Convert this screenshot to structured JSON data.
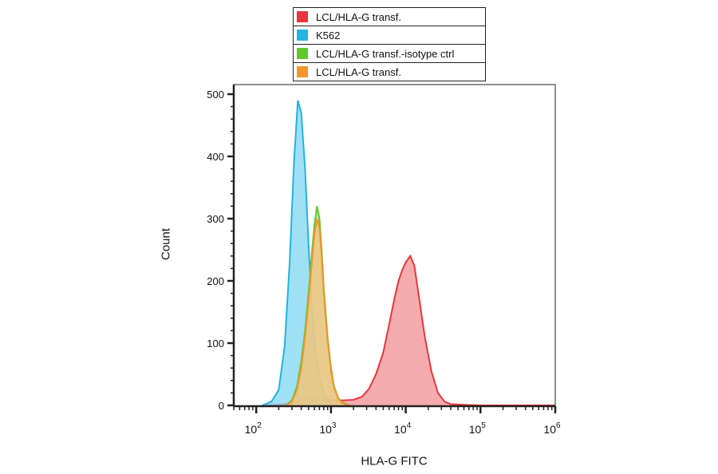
{
  "chart_data": {
    "type": "area",
    "xlabel": "HLA-G FITC",
    "ylabel": "Count",
    "x_scale": "log",
    "xlim": [
      50,
      1000000
    ],
    "ylim": [
      0,
      500
    ],
    "x_ticks": [
      {
        "base": "10",
        "exp": "2",
        "value": 100
      },
      {
        "base": "10",
        "exp": "3",
        "value": 1000
      },
      {
        "base": "10",
        "exp": "4",
        "value": 10000
      },
      {
        "base": "10",
        "exp": "5",
        "value": 100000
      },
      {
        "base": "10",
        "exp": "6",
        "value": 1000000
      }
    ],
    "y_ticks": [
      {
        "label": "0",
        "value": 0
      },
      {
        "label": "100",
        "value": 100
      },
      {
        "label": "200",
        "value": 200
      },
      {
        "label": "300",
        "value": 300
      },
      {
        "label": "400",
        "value": 400
      },
      {
        "label": "500",
        "value": 500
      }
    ],
    "legend_position": "top-center",
    "series": [
      {
        "name": "LCL/HLA-G transf.",
        "color": "#e8383d",
        "fill": "#f08f92",
        "x": [
          120,
          200,
          300,
          380,
          500,
          700,
          1000,
          1400,
          2000,
          2600,
          3200,
          4000,
          5000,
          6000,
          7000,
          8000,
          9000,
          10000,
          11500,
          13000,
          15000,
          18000,
          22000,
          27000,
          33000,
          40000,
          60000,
          100000,
          1000000
        ],
        "y": [
          0,
          1,
          3,
          8,
          11,
          10,
          9,
          8,
          9,
          14,
          26,
          50,
          85,
          130,
          170,
          200,
          218,
          230,
          240,
          225,
          175,
          110,
          55,
          20,
          6,
          2,
          1,
          0,
          0
        ]
      },
      {
        "name": "K562",
        "color": "#22b4e2",
        "fill": "#7fd6f2",
        "x": [
          120,
          160,
          200,
          240,
          280,
          320,
          360,
          400,
          450,
          500,
          560,
          620,
          700,
          800,
          900,
          1000,
          1100
        ],
        "y": [
          0,
          6,
          25,
          95,
          230,
          390,
          490,
          470,
          380,
          260,
          150,
          85,
          45,
          20,
          8,
          3,
          0
        ]
      },
      {
        "name": "LCL/HLA-G transf.-isotype ctrl",
        "color": "#5ec92d",
        "fill": "#a7e086",
        "x": [
          250,
          300,
          350,
          400,
          450,
          500,
          550,
          600,
          650,
          700,
          750,
          800,
          900,
          1000,
          1100,
          1250,
          1400,
          1600,
          1800
        ],
        "y": [
          0,
          8,
          30,
          70,
          120,
          180,
          240,
          290,
          320,
          300,
          250,
          190,
          110,
          60,
          30,
          12,
          5,
          2,
          0
        ]
      },
      {
        "name": "LCL/HLA-G transf.",
        "color": "#f4942c",
        "fill": "#f8c183",
        "x": [
          250,
          300,
          350,
          400,
          450,
          500,
          550,
          600,
          650,
          700,
          750,
          800,
          900,
          1000,
          1100,
          1250,
          1400,
          1600,
          1800
        ],
        "y": [
          0,
          6,
          25,
          60,
          110,
          165,
          225,
          275,
          300,
          285,
          240,
          180,
          105,
          55,
          28,
          11,
          4,
          1,
          0
        ]
      }
    ]
  }
}
